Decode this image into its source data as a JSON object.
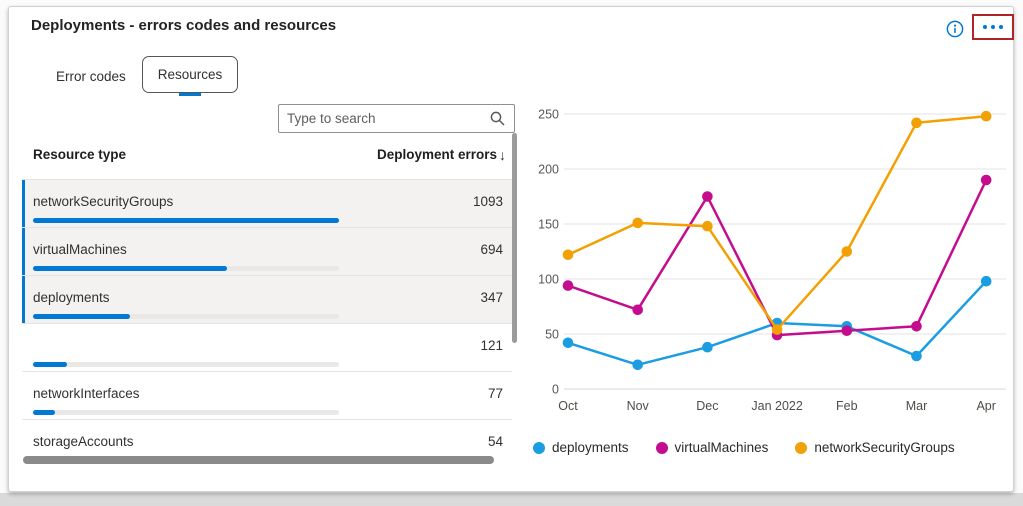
{
  "header": {
    "title": "Deployments - errors codes and resources"
  },
  "colors": {
    "accent": "#0078d4",
    "highlight_box": "#b12326",
    "grid": "#e3e3e3",
    "axis_text": "#5a5753"
  },
  "tabs": [
    {
      "label": "Error codes",
      "selected": false
    },
    {
      "label": "Resources",
      "selected": true
    }
  ],
  "search": {
    "placeholder": "Type to search"
  },
  "table": {
    "columns": [
      "Resource type",
      "Deployment errors"
    ],
    "sort_indicator": "↓",
    "max_value": 1093,
    "bar_color": "#0078d4",
    "rows": [
      {
        "name": "networkSecurityGroups",
        "value": 1093,
        "selected": true
      },
      {
        "name": "virtualMachines",
        "value": 694,
        "selected": true
      },
      {
        "name": "deployments",
        "value": 347,
        "selected": true
      },
      {
        "name": "",
        "value": 121,
        "selected": false
      },
      {
        "name": "networkInterfaces",
        "value": 77,
        "selected": false
      },
      {
        "name": "storageAccounts",
        "value": 54,
        "selected": false
      }
    ]
  },
  "chart_data": {
    "type": "line",
    "x": [
      "Oct",
      "Nov",
      "Dec",
      "Jan 2022",
      "Feb",
      "Mar",
      "Apr"
    ],
    "series": [
      {
        "name": "deployments",
        "color": "#1b9de2",
        "values": [
          42,
          22,
          38,
          60,
          57,
          30,
          98
        ]
      },
      {
        "name": "virtualMachines",
        "color": "#c40d8e",
        "values": [
          94,
          72,
          175,
          49,
          53,
          57,
          190
        ]
      },
      {
        "name": "networkSecurityGroups",
        "color": "#f2a104",
        "values": [
          122,
          151,
          148,
          54,
          125,
          242,
          248
        ]
      }
    ],
    "ylim": [
      0,
      250
    ],
    "yticks": [
      0,
      50,
      100,
      150,
      200,
      250
    ],
    "grid": true,
    "legend_position": "bottom"
  }
}
